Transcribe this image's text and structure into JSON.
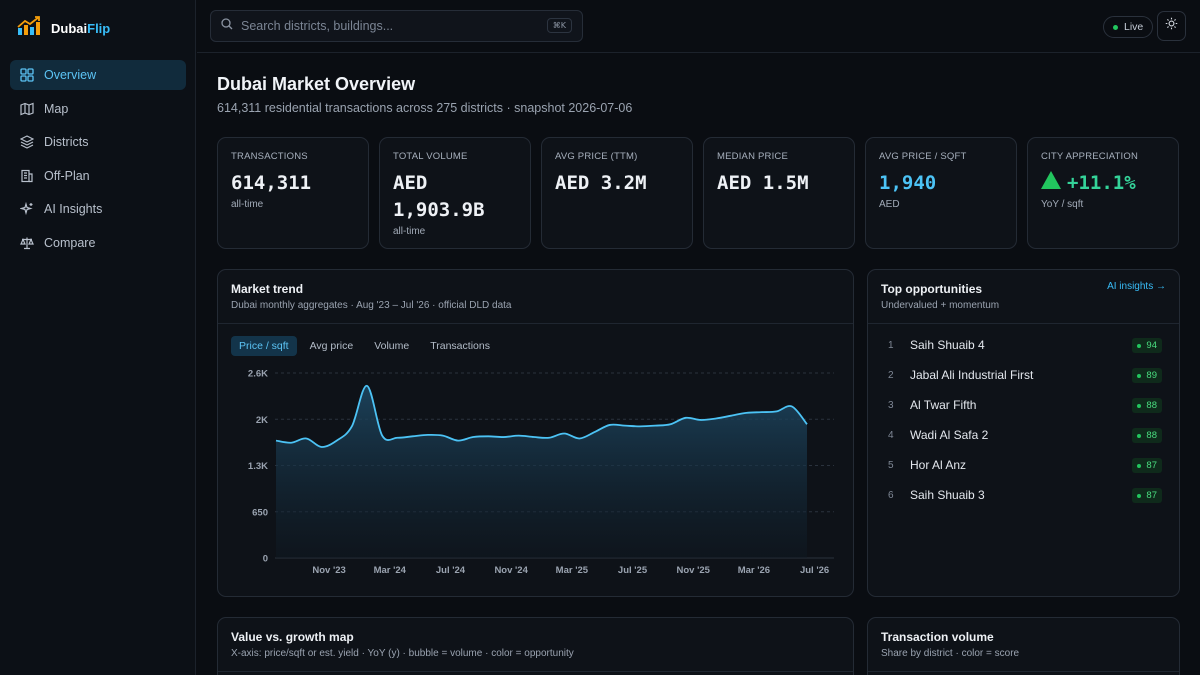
{
  "app": {
    "name_part1": "Dubai",
    "name_part2": "Flip"
  },
  "sidebar": {
    "items": [
      {
        "label": "Overview",
        "icon": "grid-icon",
        "active": true
      },
      {
        "label": "Map",
        "icon": "map-icon"
      },
      {
        "label": "Districts",
        "icon": "layers-icon"
      },
      {
        "label": "Off-Plan",
        "icon": "building-icon"
      },
      {
        "label": "AI Insights",
        "icon": "sparkles-icon"
      },
      {
        "label": "Compare",
        "icon": "scale-icon"
      }
    ]
  },
  "topbar": {
    "search_placeholder": "Search districts, buildings...",
    "search_shortcut": "⌘K",
    "live_label": "Live",
    "theme_icon": "sun-icon"
  },
  "header": {
    "title": "Dubai Market Overview",
    "subtitle": "614,311 residential transactions across 275 districts · snapshot 2026-07-06"
  },
  "kpis": [
    {
      "label": "TRANSACTIONS",
      "value": "614,311",
      "sub": "all-time"
    },
    {
      "label": "TOTAL VOLUME",
      "value": "AED 1,903.9B",
      "sub": "all-time"
    },
    {
      "label": "AVG PRICE (TTM)",
      "value": "AED 3.2M",
      "sub": ""
    },
    {
      "label": "MEDIAN PRICE",
      "value": "AED 1.5M",
      "sub": ""
    },
    {
      "label": "AVG PRICE / SQFT",
      "value": "1,940",
      "sub": "AED"
    },
    {
      "label": "CITY APPRECIATION",
      "value": "+11.1%",
      "sub": "YoY / sqft"
    }
  ],
  "market_trend": {
    "title": "Market trend",
    "subtitle": "Dubai monthly aggregates · Aug '23 – Jul '26 · official DLD data",
    "tabs": [
      "Price / sqft",
      "Avg price",
      "Volume",
      "Transactions"
    ],
    "active_tab": 0
  },
  "chart_data": {
    "type": "area",
    "title": "",
    "xlabel": "",
    "ylabel": "",
    "ylim": [
      0,
      2600
    ],
    "y_ticks": [
      "0",
      "650",
      "1.3K",
      "2K",
      "2.6K"
    ],
    "x_ticks": [
      "Nov '23",
      "Mar '24",
      "Jul '24",
      "Nov '24",
      "Mar '25",
      "Jul '25",
      "Nov '25",
      "Mar '26",
      "Jul '26"
    ],
    "grid": true,
    "series": [
      {
        "values": [
          1650,
          1620,
          1680,
          1560,
          1650,
          1850,
          2420,
          1720,
          1690,
          1710,
          1730,
          1720,
          1650,
          1700,
          1710,
          1700,
          1720,
          1700,
          1690,
          1750,
          1680,
          1770,
          1870,
          1860,
          1850,
          1860,
          1880,
          1970,
          1940,
          1960,
          2000,
          2040,
          2050,
          2060,
          2130,
          1880
        ]
      }
    ]
  },
  "opportunities": {
    "title": "Top opportunities",
    "subtitle": "Undervalued + momentum",
    "link_label": "AI insights →",
    "items": [
      {
        "rank": "1",
        "name": "Saih Shuaib 4",
        "score": "94"
      },
      {
        "rank": "2",
        "name": "Jabal Ali Industrial First",
        "score": "89"
      },
      {
        "rank": "3",
        "name": "Al Twar Fifth",
        "score": "88"
      },
      {
        "rank": "4",
        "name": "Wadi Al Safa 2",
        "score": "88"
      },
      {
        "rank": "5",
        "name": "Hor Al Anz",
        "score": "87"
      },
      {
        "rank": "6",
        "name": "Saih Shuaib 3",
        "score": "87"
      }
    ]
  },
  "value_growth": {
    "title": "Value vs. growth map",
    "subtitle": "X-axis: price/sqft or est. yield · YoY (y) · bubble = volume · color = opportunity"
  },
  "transaction_volume": {
    "title": "Transaction volume",
    "subtitle": "Share by district · color = score"
  }
}
